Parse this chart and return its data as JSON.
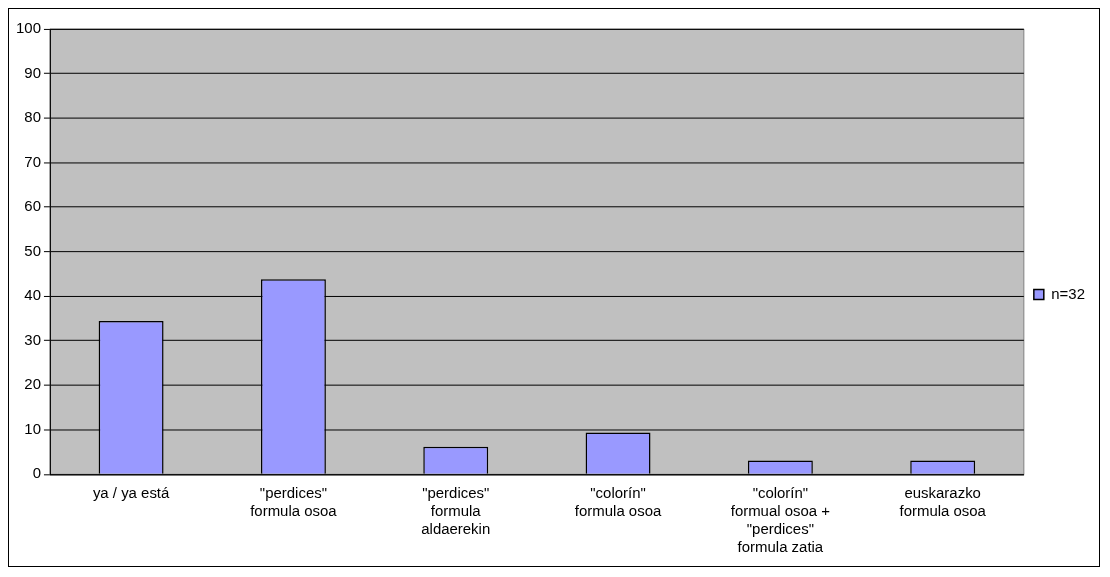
{
  "chart_data": {
    "type": "bar",
    "categories": [
      "ya / ya está",
      "\"perdices\" formula osoa",
      "\"perdices\" formula aldaerekin",
      "\"colorín\" formula osoa",
      "\"colorín\" formual osoa + \"perdices\" formula zatia",
      "euskarazko formula osoa"
    ],
    "series": [
      {
        "name": "n=32",
        "color": "#9999ff",
        "values": [
          34.4,
          43.8,
          6.2,
          9.4,
          3.1,
          3.1
        ]
      }
    ],
    "ylim": [
      0,
      100
    ],
    "yticks": [
      0,
      10,
      20,
      30,
      40,
      50,
      60,
      70,
      80,
      90,
      100
    ],
    "grid": "y",
    "legend": "right"
  }
}
